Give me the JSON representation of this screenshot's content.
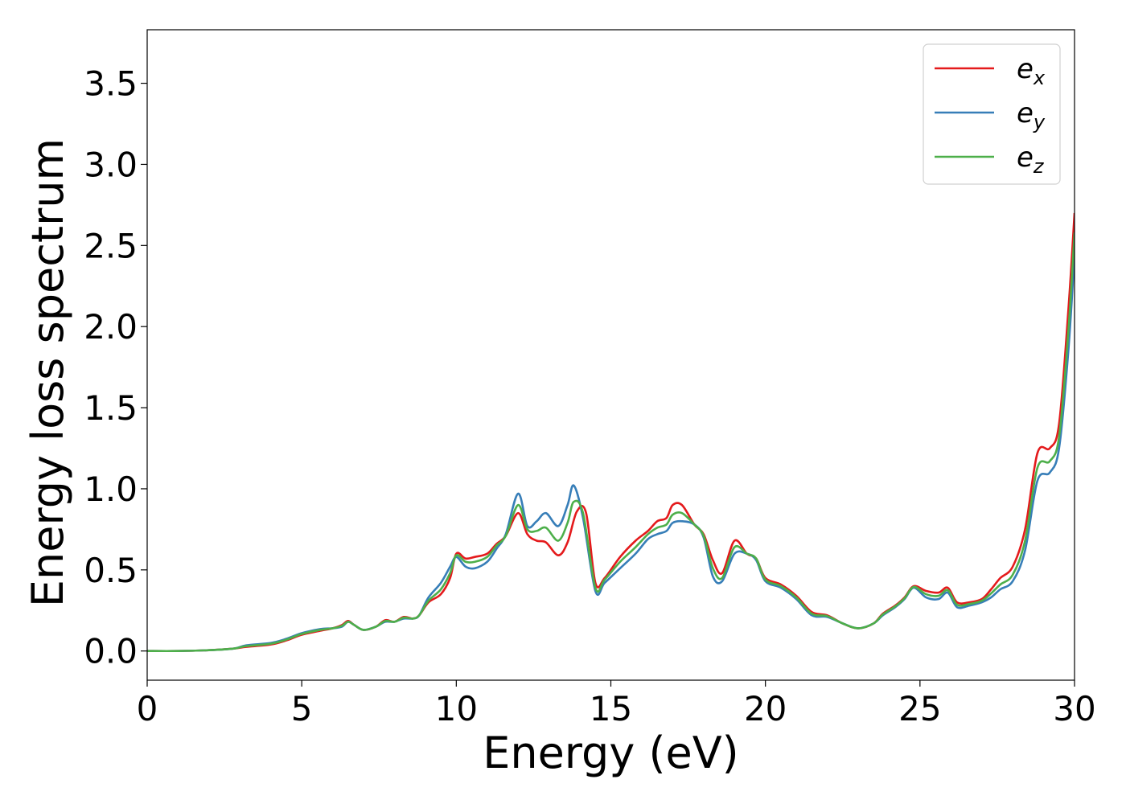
{
  "chart_data": {
    "type": "line",
    "xlabel": "Energy (eV)",
    "ylabel": "Energy loss spectrum",
    "xlim": [
      0,
      30
    ],
    "ylim": [
      -0.18,
      3.83
    ],
    "xticks": [
      0,
      5,
      10,
      15,
      20,
      25,
      30
    ],
    "xtick_labels": [
      "0",
      "5",
      "10",
      "15",
      "20",
      "25",
      "30"
    ],
    "yticks": [
      0.0,
      0.5,
      1.0,
      1.5,
      2.0,
      2.5,
      3.0,
      3.5
    ],
    "ytick_labels": [
      "0.0",
      "0.5",
      "1.0",
      "1.5",
      "2.0",
      "2.5",
      "3.0",
      "3.5"
    ],
    "grid": false,
    "legend_position": "top-right",
    "series": [
      {
        "name": "e_x",
        "legend_base": "e",
        "legend_sub": "x",
        "color": "#e41a1c",
        "points": [
          [
            0,
            0
          ],
          [
            1,
            0
          ],
          [
            2,
            0.005
          ],
          [
            2.8,
            0.015
          ],
          [
            3.2,
            0.025
          ],
          [
            4.0,
            0.04
          ],
          [
            4.5,
            0.065
          ],
          [
            5,
            0.1
          ],
          [
            5.6,
            0.125
          ],
          [
            6.0,
            0.14
          ],
          [
            6.3,
            0.16
          ],
          [
            6.5,
            0.185
          ],
          [
            6.7,
            0.16
          ],
          [
            7.0,
            0.13
          ],
          [
            7.4,
            0.15
          ],
          [
            7.7,
            0.19
          ],
          [
            8.0,
            0.18
          ],
          [
            8.3,
            0.21
          ],
          [
            8.6,
            0.2
          ],
          [
            8.8,
            0.22
          ],
          [
            9.1,
            0.3
          ],
          [
            9.5,
            0.35
          ],
          [
            9.8,
            0.45
          ],
          [
            10.0,
            0.6
          ],
          [
            10.3,
            0.57
          ],
          [
            10.6,
            0.58
          ],
          [
            11.0,
            0.6
          ],
          [
            11.3,
            0.66
          ],
          [
            11.6,
            0.71
          ],
          [
            12.0,
            0.85
          ],
          [
            12.3,
            0.72
          ],
          [
            12.6,
            0.68
          ],
          [
            12.9,
            0.67
          ],
          [
            13.3,
            0.59
          ],
          [
            13.6,
            0.67
          ],
          [
            13.9,
            0.86
          ],
          [
            14.2,
            0.85
          ],
          [
            14.5,
            0.42
          ],
          [
            14.8,
            0.45
          ],
          [
            15.3,
            0.58
          ],
          [
            15.8,
            0.68
          ],
          [
            16.2,
            0.74
          ],
          [
            16.5,
            0.8
          ],
          [
            16.8,
            0.82
          ],
          [
            17.0,
            0.9
          ],
          [
            17.3,
            0.9
          ],
          [
            17.7,
            0.78
          ],
          [
            18.0,
            0.72
          ],
          [
            18.3,
            0.56
          ],
          [
            18.6,
            0.48
          ],
          [
            19.0,
            0.68
          ],
          [
            19.4,
            0.6
          ],
          [
            19.7,
            0.57
          ],
          [
            20.0,
            0.45
          ],
          [
            20.5,
            0.41
          ],
          [
            21.0,
            0.34
          ],
          [
            21.5,
            0.24
          ],
          [
            22.0,
            0.22
          ],
          [
            22.5,
            0.17
          ],
          [
            23.0,
            0.14
          ],
          [
            23.5,
            0.17
          ],
          [
            23.8,
            0.23
          ],
          [
            24.2,
            0.28
          ],
          [
            24.5,
            0.33
          ],
          [
            24.8,
            0.4
          ],
          [
            25.2,
            0.37
          ],
          [
            25.6,
            0.36
          ],
          [
            25.9,
            0.39
          ],
          [
            26.2,
            0.3
          ],
          [
            26.6,
            0.3
          ],
          [
            27.0,
            0.32
          ],
          [
            27.3,
            0.38
          ],
          [
            27.6,
            0.45
          ],
          [
            28.0,
            0.52
          ],
          [
            28.4,
            0.75
          ],
          [
            28.8,
            1.22
          ],
          [
            29.2,
            1.25
          ],
          [
            29.5,
            1.4
          ],
          [
            29.8,
            2.1
          ],
          [
            30.0,
            2.7
          ]
        ]
      },
      {
        "name": "e_y",
        "legend_base": "e",
        "legend_sub": "y",
        "color": "#377eb8",
        "points": [
          [
            0,
            0
          ],
          [
            1,
            0
          ],
          [
            2,
            0.005
          ],
          [
            2.8,
            0.015
          ],
          [
            3.2,
            0.035
          ],
          [
            4.0,
            0.05
          ],
          [
            4.5,
            0.075
          ],
          [
            5,
            0.11
          ],
          [
            5.6,
            0.135
          ],
          [
            6.0,
            0.14
          ],
          [
            6.3,
            0.15
          ],
          [
            6.5,
            0.18
          ],
          [
            6.7,
            0.16
          ],
          [
            7.0,
            0.13
          ],
          [
            7.4,
            0.15
          ],
          [
            7.7,
            0.18
          ],
          [
            8.0,
            0.18
          ],
          [
            8.3,
            0.2
          ],
          [
            8.6,
            0.2
          ],
          [
            8.8,
            0.22
          ],
          [
            9.1,
            0.33
          ],
          [
            9.5,
            0.42
          ],
          [
            9.8,
            0.52
          ],
          [
            10.0,
            0.58
          ],
          [
            10.3,
            0.52
          ],
          [
            10.6,
            0.51
          ],
          [
            11.0,
            0.55
          ],
          [
            11.3,
            0.63
          ],
          [
            11.6,
            0.72
          ],
          [
            12.0,
            0.97
          ],
          [
            12.3,
            0.77
          ],
          [
            12.6,
            0.8
          ],
          [
            12.9,
            0.85
          ],
          [
            13.3,
            0.77
          ],
          [
            13.6,
            0.9
          ],
          [
            13.8,
            1.02
          ],
          [
            14.1,
            0.82
          ],
          [
            14.5,
            0.37
          ],
          [
            14.8,
            0.42
          ],
          [
            15.3,
            0.51
          ],
          [
            15.8,
            0.6
          ],
          [
            16.2,
            0.69
          ],
          [
            16.5,
            0.72
          ],
          [
            16.8,
            0.74
          ],
          [
            17.0,
            0.79
          ],
          [
            17.3,
            0.8
          ],
          [
            17.7,
            0.78
          ],
          [
            18.0,
            0.7
          ],
          [
            18.3,
            0.46
          ],
          [
            18.6,
            0.43
          ],
          [
            19.0,
            0.6
          ],
          [
            19.4,
            0.6
          ],
          [
            19.7,
            0.56
          ],
          [
            20.0,
            0.43
          ],
          [
            20.5,
            0.39
          ],
          [
            21.0,
            0.32
          ],
          [
            21.5,
            0.22
          ],
          [
            22.0,
            0.21
          ],
          [
            22.5,
            0.17
          ],
          [
            23.0,
            0.14
          ],
          [
            23.5,
            0.17
          ],
          [
            23.8,
            0.22
          ],
          [
            24.2,
            0.27
          ],
          [
            24.5,
            0.32
          ],
          [
            24.8,
            0.39
          ],
          [
            25.2,
            0.33
          ],
          [
            25.6,
            0.32
          ],
          [
            25.9,
            0.36
          ],
          [
            26.2,
            0.27
          ],
          [
            26.6,
            0.28
          ],
          [
            27.0,
            0.3
          ],
          [
            27.3,
            0.33
          ],
          [
            27.6,
            0.38
          ],
          [
            28.0,
            0.43
          ],
          [
            28.4,
            0.62
          ],
          [
            28.8,
            1.05
          ],
          [
            29.2,
            1.1
          ],
          [
            29.5,
            1.25
          ],
          [
            29.8,
            1.85
          ],
          [
            30.0,
            2.45
          ]
        ]
      },
      {
        "name": "e_z",
        "legend_base": "e",
        "legend_sub": "z",
        "color": "#4daf4a",
        "points": [
          [
            0,
            0
          ],
          [
            1,
            0
          ],
          [
            2,
            0.005
          ],
          [
            2.8,
            0.015
          ],
          [
            3.2,
            0.03
          ],
          [
            4.0,
            0.045
          ],
          [
            4.5,
            0.07
          ],
          [
            5,
            0.105
          ],
          [
            5.6,
            0.13
          ],
          [
            6.0,
            0.14
          ],
          [
            6.3,
            0.155
          ],
          [
            6.5,
            0.18
          ],
          [
            6.7,
            0.16
          ],
          [
            7.0,
            0.13
          ],
          [
            7.4,
            0.15
          ],
          [
            7.7,
            0.185
          ],
          [
            8.0,
            0.18
          ],
          [
            8.3,
            0.205
          ],
          [
            8.6,
            0.2
          ],
          [
            8.8,
            0.22
          ],
          [
            9.1,
            0.31
          ],
          [
            9.5,
            0.38
          ],
          [
            9.8,
            0.48
          ],
          [
            10.0,
            0.59
          ],
          [
            10.3,
            0.55
          ],
          [
            10.6,
            0.55
          ],
          [
            11.0,
            0.58
          ],
          [
            11.3,
            0.65
          ],
          [
            11.6,
            0.71
          ],
          [
            12.0,
            0.9
          ],
          [
            12.3,
            0.75
          ],
          [
            12.6,
            0.74
          ],
          [
            12.9,
            0.76
          ],
          [
            13.3,
            0.68
          ],
          [
            13.6,
            0.79
          ],
          [
            13.8,
            0.92
          ],
          [
            14.1,
            0.85
          ],
          [
            14.5,
            0.39
          ],
          [
            14.8,
            0.44
          ],
          [
            15.3,
            0.55
          ],
          [
            15.8,
            0.64
          ],
          [
            16.2,
            0.72
          ],
          [
            16.5,
            0.76
          ],
          [
            16.8,
            0.78
          ],
          [
            17.0,
            0.84
          ],
          [
            17.3,
            0.85
          ],
          [
            17.7,
            0.78
          ],
          [
            18.0,
            0.71
          ],
          [
            18.3,
            0.51
          ],
          [
            18.6,
            0.45
          ],
          [
            19.0,
            0.64
          ],
          [
            19.4,
            0.6
          ],
          [
            19.7,
            0.57
          ],
          [
            20.0,
            0.44
          ],
          [
            20.5,
            0.4
          ],
          [
            21.0,
            0.33
          ],
          [
            21.5,
            0.23
          ],
          [
            22.0,
            0.215
          ],
          [
            22.5,
            0.17
          ],
          [
            23.0,
            0.14
          ],
          [
            23.5,
            0.17
          ],
          [
            23.8,
            0.225
          ],
          [
            24.2,
            0.275
          ],
          [
            24.5,
            0.325
          ],
          [
            24.8,
            0.395
          ],
          [
            25.2,
            0.35
          ],
          [
            25.6,
            0.34
          ],
          [
            25.9,
            0.375
          ],
          [
            26.2,
            0.285
          ],
          [
            26.6,
            0.29
          ],
          [
            27.0,
            0.31
          ],
          [
            27.3,
            0.355
          ],
          [
            27.6,
            0.41
          ],
          [
            28.0,
            0.47
          ],
          [
            28.4,
            0.68
          ],
          [
            28.8,
            1.13
          ],
          [
            29.2,
            1.17
          ],
          [
            29.5,
            1.32
          ],
          [
            29.8,
            1.97
          ],
          [
            30.0,
            2.58
          ]
        ]
      }
    ]
  }
}
